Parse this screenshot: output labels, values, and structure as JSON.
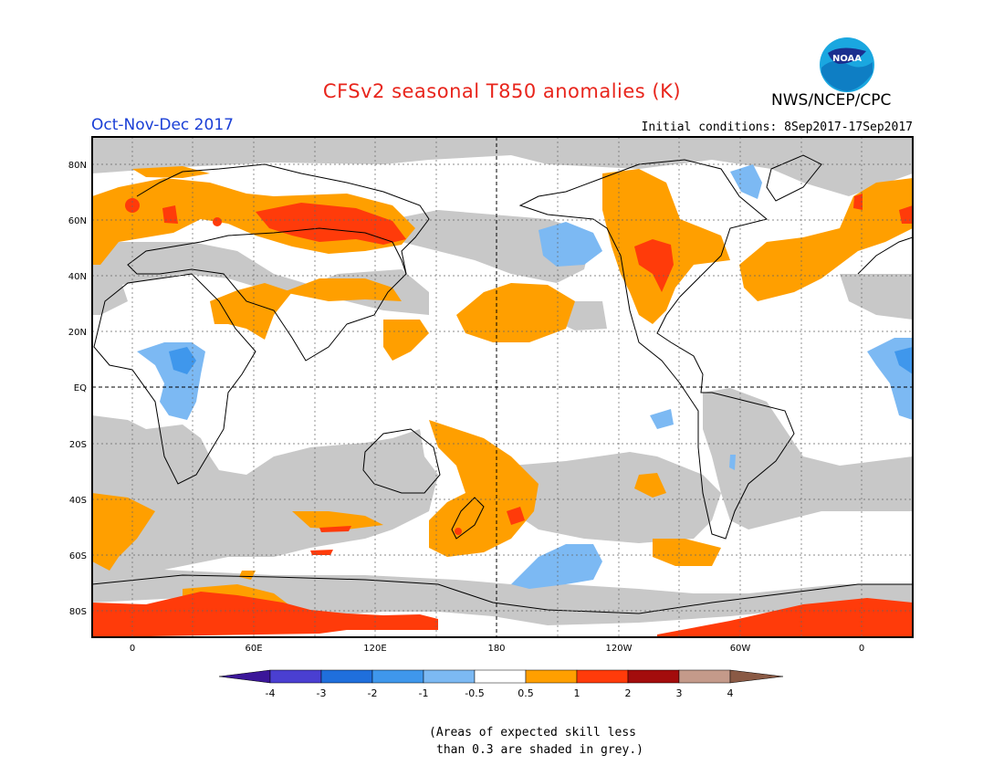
{
  "title": "CFSv2 seasonal T850 anomalies (K)",
  "organization": "NWS/NCEP/CPC",
  "logo_text": "NOAA",
  "season": "Oct-Nov-Dec 2017",
  "initial_conditions": "Initial conditions: 8Sep2017-17Sep2017",
  "map": {
    "projection": "cylindrical equidistant, centered 180",
    "lat_labels": [
      "80N",
      "60N",
      "40N",
      "20N",
      "EQ",
      "20S",
      "40S",
      "60S",
      "80S"
    ],
    "lon_labels": [
      "0",
      "60E",
      "120E",
      "180",
      "120W",
      "60W",
      "0"
    ]
  },
  "legend": {
    "boundaries": [
      "-4",
      "-3",
      "-2",
      "-1",
      "-0.5",
      "0.5",
      "1",
      "2",
      "3",
      "4"
    ],
    "colors": [
      "#3b1699",
      "#4a3fd1",
      "#1f6fdc",
      "#3f97ec",
      "#7cb9f3",
      "#ffffff",
      "#ff9f00",
      "#ff3b0a",
      "#a30c0c",
      "#c49a8a",
      "#8a5a45"
    ]
  },
  "colors": {
    "positive_light": "#ff9f00",
    "positive_strong": "#ff3b0a",
    "negative_light": "#7cb9f3",
    "negative_mid": "#3f97ec",
    "low_skill": "#c8c8c8"
  },
  "note_line1": "(Areas of expected skill less",
  "note_line2": "than 0.3 are shaded in grey.)"
}
